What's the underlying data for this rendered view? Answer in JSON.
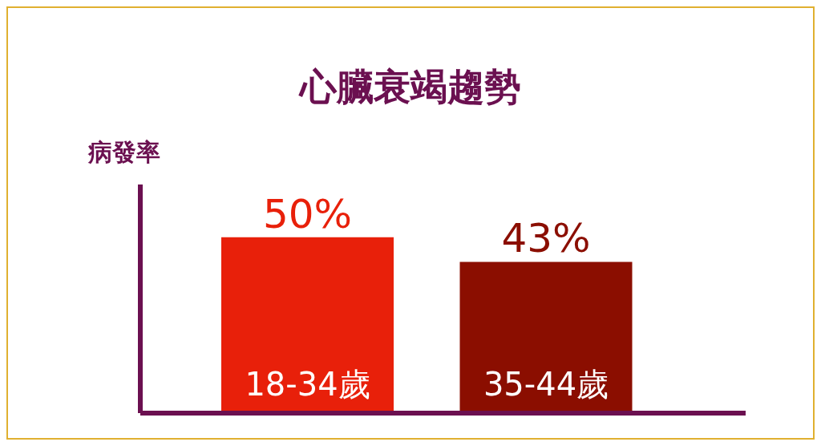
{
  "chart_data": {
    "type": "bar",
    "title": "心臟衰竭趨勢",
    "ylabel": "病發率",
    "categories": [
      "18-34歲",
      "35-44歲"
    ],
    "values": [
      50,
      43
    ],
    "colors": [
      "#e8200a",
      "#8b0e00"
    ],
    "value_labels": [
      "50%",
      "43%"
    ],
    "grid": false,
    "legend": false
  }
}
